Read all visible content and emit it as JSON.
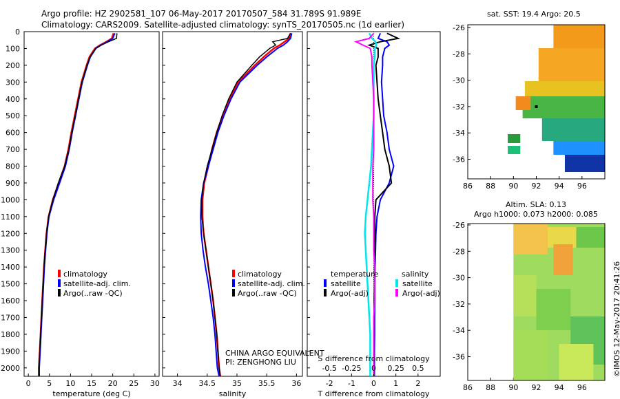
{
  "header": {
    "line1": "Argo profile: HZ 2902581_107 06-May-2017 20170507_584 31.789S 91.989E",
    "line2": "Climatology: CARS2009. Satellite-adjusted climatology: synTS_20170505.nc (1d earlier)"
  },
  "right": {
    "sst_title": "sat. SST: 19.4 Argo: 20.5",
    "sla_title1": "Altim. SLA: 0.13",
    "sla_title2": "Argo h1000: 0.073 h2000: 0.085",
    "stamp": "©IMOS 12-May-2017 20:41:26"
  },
  "credit": {
    "line1": "CHINA ARGO EQUIVALENT",
    "line2": "PI: ZENGHONG LIU"
  },
  "colors": {
    "climatology": "#ff0000",
    "satellite": "#0000ff",
    "argo": "#000000",
    "sat_salt": "#00e5ee",
    "argo_salt": "#ff00ff"
  },
  "legends": {
    "profile": [
      "climatology",
      "satellite-adj. clim.",
      "Argo(..raw -QC)"
    ],
    "diff_head_t": "temperature",
    "diff_head_s": "salinity",
    "diff_t": [
      "satellite",
      "Argo(-adj)"
    ],
    "diff_s": [
      "satellite",
      "Argo(-adj)"
    ]
  },
  "chart_data": [
    {
      "type": "line",
      "xlabel": "temperature (deg C)",
      "ylim": [
        2050,
        0
      ],
      "xlim": [
        -1,
        31
      ],
      "xticks": [
        0,
        5,
        10,
        15,
        20,
        25,
        30
      ],
      "yticks": [
        0,
        100,
        200,
        300,
        400,
        500,
        600,
        700,
        800,
        900,
        1000,
        1100,
        1200,
        1300,
        1400,
        1500,
        1600,
        1700,
        1800,
        1900,
        2000
      ],
      "depth": [
        10,
        40,
        60,
        80,
        100,
        150,
        200,
        300,
        400,
        500,
        600,
        700,
        800,
        900,
        1000,
        1100,
        1200,
        1300,
        1400,
        1500,
        1600,
        1700,
        1800,
        1900,
        2000,
        2050
      ],
      "series": [
        {
          "name": "climatology",
          "values": [
            20.2,
            19.8,
            18.5,
            17,
            15.8,
            14.5,
            13.8,
            12.6,
            11.8,
            11,
            10.2,
            9.5,
            8.6,
            7.2,
            5.8,
            4.8,
            4.3,
            4,
            3.7,
            3.5,
            3.3,
            3.1,
            2.9,
            2.7,
            2.5,
            2.5
          ]
        },
        {
          "name": "satellite-adj. clim.",
          "values": [
            20.5,
            20,
            18.7,
            17.2,
            16,
            14.7,
            14,
            12.8,
            12,
            11.2,
            10.4,
            9.7,
            8.8,
            7.4,
            6,
            4.9,
            4.4,
            4.1,
            3.8,
            3.6,
            3.4,
            3.2,
            3,
            2.8,
            2.6,
            2.6
          ]
        },
        {
          "name": "Argo(..raw -QC)",
          "values": [
            21,
            20.9,
            19,
            17.3,
            16,
            14.6,
            13.9,
            12.7,
            11.9,
            11.1,
            10.3,
            9.6,
            8.6,
            7.1,
            5.8,
            4.8,
            4.3,
            4,
            3.7,
            3.5,
            3.3,
            3.1,
            2.9,
            2.7,
            2.5,
            2.5
          ]
        }
      ]
    },
    {
      "type": "line",
      "xlabel": "salinity",
      "ylim": [
        2050,
        0
      ],
      "xlim": [
        33.75,
        36.1
      ],
      "xticks": [
        34,
        34.5,
        35,
        35.5,
        36
      ],
      "depth": [
        10,
        40,
        60,
        80,
        100,
        150,
        200,
        300,
        400,
        500,
        600,
        700,
        800,
        900,
        1000,
        1100,
        1200,
        1300,
        1400,
        1500,
        1600,
        1700,
        1800,
        1900,
        2000,
        2050
      ],
      "series": [
        {
          "name": "climatology",
          "values": [
            35.9,
            35.88,
            35.8,
            35.72,
            35.62,
            35.45,
            35.3,
            35.02,
            34.88,
            34.76,
            34.66,
            34.58,
            34.52,
            34.45,
            34.42,
            34.42,
            34.44,
            34.48,
            34.52,
            34.56,
            34.6,
            34.63,
            34.66,
            34.68,
            34.7,
            34.72
          ]
        },
        {
          "name": "satellite-adj. clim.",
          "values": [
            35.92,
            35.9,
            35.85,
            35.78,
            35.68,
            35.5,
            35.34,
            35.05,
            34.9,
            34.78,
            34.68,
            34.6,
            34.52,
            34.44,
            34.4,
            34.39,
            34.4,
            34.43,
            34.47,
            34.52,
            34.56,
            34.6,
            34.63,
            34.65,
            34.67,
            34.7
          ]
        },
        {
          "name": "Argo(..raw -QC)",
          "values": [
            35.9,
            35.85,
            35.6,
            35.65,
            35.55,
            35.38,
            35.25,
            35.0,
            34.86,
            34.75,
            34.66,
            34.58,
            34.5,
            34.44,
            34.41,
            34.41,
            34.44,
            34.48,
            34.52,
            34.56,
            34.6,
            34.63,
            34.66,
            34.68,
            34.7,
            34.72
          ]
        }
      ]
    },
    {
      "type": "line",
      "xlabel": "T difference from climatology",
      "x2label": "S difference from climatology",
      "ylim": [
        2050,
        0
      ],
      "xlim": [
        -3,
        3
      ],
      "xticks": [
        -2,
        -1,
        0,
        1,
        2
      ],
      "x2lim": [
        -0.75,
        0.75
      ],
      "x2ticks": [
        -0.5,
        -0.25,
        0,
        0.25,
        0.5
      ],
      "depth": [
        10,
        40,
        60,
        80,
        100,
        150,
        200,
        300,
        400,
        500,
        600,
        700,
        800,
        900,
        1000,
        1100,
        1200,
        1300,
        1400,
        1500,
        1600,
        1700,
        1800,
        1900,
        2000,
        2050
      ],
      "series": [
        {
          "name": "satellite",
          "values": [
            0.3,
            0.2,
            0.6,
            0.7,
            0.5,
            0.4,
            0.4,
            0.35,
            0.4,
            0.45,
            0.6,
            0.7,
            0.9,
            0.7,
            0.3,
            0.15,
            0.1,
            0.08,
            0.06,
            0.05,
            0.05,
            0.04,
            0.04,
            0.03,
            0.03,
            0.03
          ]
        },
        {
          "name": "Argo(-adj)",
          "values": [
            0.6,
            1.1,
            0.3,
            -0.2,
            0.2,
            0.2,
            0.1,
            0.15,
            0.2,
            0.3,
            0.4,
            0.5,
            0.7,
            0.8,
            0.1,
            0.05,
            0.05,
            0.04,
            0.03,
            0.03,
            0.02,
            0.02,
            0.02,
            0.01,
            0.01,
            0.01
          ]
        },
        {
          "name": "satellite",
          "values": [
            -0.05,
            -0.02,
            0.02,
            0.03,
            0.01,
            0.01,
            0,
            0,
            0,
            0,
            -0.01,
            -0.02,
            -0.03,
            -0.05,
            -0.07,
            -0.09,
            -0.1,
            -0.09,
            -0.08,
            -0.07,
            -0.06,
            -0.05,
            -0.04,
            -0.04,
            -0.04,
            -0.04
          ]
        },
        {
          "name": "Argo(-adj)",
          "values": [
            0,
            -0.05,
            -0.2,
            -0.12,
            -0.04,
            -0.02,
            -0.02,
            -0.01,
            0,
            0,
            0,
            0,
            -0.01,
            -0.01,
            -0.01,
            0,
            0,
            0,
            0.01,
            0.01,
            0.01,
            0,
            0,
            0,
            0,
            0
          ]
        }
      ]
    }
  ],
  "maps": {
    "sst": {
      "xticks": [
        "86",
        "88",
        "90",
        "92",
        "94",
        "96"
      ],
      "yticks": [
        "-26",
        "-28",
        "-30",
        "-32",
        "-34",
        "-36"
      ]
    },
    "sla": {
      "xticks": [
        "86",
        "88",
        "90",
        "92",
        "94",
        "96"
      ],
      "yticks": [
        "-26",
        "-28",
        "-30",
        "-32",
        "-34",
        "-36"
      ]
    }
  }
}
